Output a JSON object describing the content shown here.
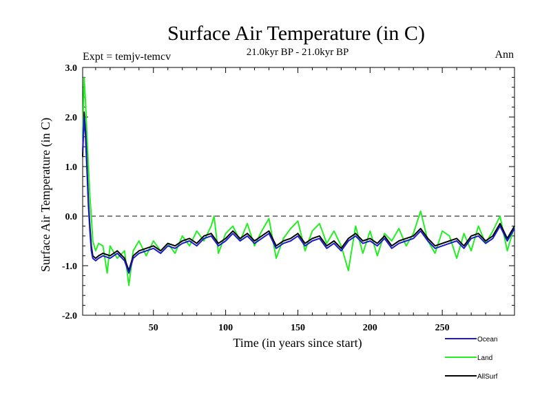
{
  "chart_data": {
    "type": "line",
    "title": "Surface Air Temperature (in C)",
    "subtitle": "21.0kyr BP - 21.0kyr BP",
    "left_annotation": "Expt = temjv-temcv",
    "right_annotation": "Ann",
    "xlabel": "Time (in years since start)",
    "ylabel": "Surface Air Temperature (in C)",
    "xlim": [
      1,
      300
    ],
    "ylim": [
      -2.0,
      3.0
    ],
    "x_ticks": [
      50,
      100,
      150,
      200,
      250
    ],
    "y_ticks": [
      -2.0,
      -1.0,
      0.0,
      1.0,
      2.0,
      3.0
    ],
    "y_tick_labels": [
      "-2.0",
      "-1.0",
      "0.0",
      "1.0",
      "2.0",
      "3.0"
    ],
    "reference_line": 0.0,
    "legend_position": "bottom-right",
    "series": [
      {
        "name": "AllSurf",
        "color": "#000000",
        "x": [
          1,
          2,
          3,
          4,
          5,
          6,
          7,
          8,
          10,
          12,
          15,
          20,
          25,
          30,
          33,
          36,
          40,
          45,
          50,
          55,
          60,
          65,
          70,
          75,
          80,
          85,
          90,
          95,
          100,
          105,
          110,
          115,
          120,
          125,
          130,
          135,
          140,
          145,
          150,
          155,
          160,
          165,
          170,
          175,
          180,
          185,
          190,
          195,
          200,
          205,
          210,
          215,
          220,
          225,
          230,
          235,
          240,
          245,
          250,
          255,
          260,
          265,
          270,
          275,
          280,
          285,
          290,
          295,
          300
        ],
        "values": [
          1.2,
          2.1,
          1.7,
          1.0,
          0.3,
          -0.2,
          -0.6,
          -0.8,
          -0.85,
          -0.8,
          -0.75,
          -0.8,
          -0.7,
          -0.85,
          -1.1,
          -0.8,
          -0.7,
          -0.65,
          -0.6,
          -0.7,
          -0.55,
          -0.6,
          -0.5,
          -0.45,
          -0.55,
          -0.4,
          -0.35,
          -0.55,
          -0.45,
          -0.3,
          -0.45,
          -0.35,
          -0.5,
          -0.4,
          -0.3,
          -0.6,
          -0.5,
          -0.45,
          -0.35,
          -0.55,
          -0.45,
          -0.4,
          -0.6,
          -0.5,
          -0.65,
          -0.45,
          -0.35,
          -0.5,
          -0.45,
          -0.55,
          -0.4,
          -0.6,
          -0.5,
          -0.45,
          -0.4,
          -0.25,
          -0.45,
          -0.6,
          -0.55,
          -0.5,
          -0.45,
          -0.6,
          -0.4,
          -0.35,
          -0.5,
          -0.4,
          -0.15,
          -0.45,
          -0.2
        ]
      },
      {
        "name": "Land",
        "color": "#22ee22",
        "x": [
          1,
          2,
          3,
          4,
          5,
          6,
          7,
          8,
          10,
          12,
          15,
          18,
          20,
          25,
          30,
          33,
          36,
          40,
          45,
          50,
          55,
          60,
          65,
          70,
          75,
          80,
          85,
          90,
          92,
          95,
          100,
          105,
          110,
          115,
          120,
          125,
          130,
          135,
          140,
          145,
          150,
          155,
          160,
          165,
          170,
          175,
          180,
          185,
          190,
          195,
          200,
          205,
          210,
          215,
          220,
          225,
          230,
          235,
          240,
          245,
          250,
          255,
          260,
          265,
          270,
          275,
          280,
          285,
          290,
          295,
          300
        ],
        "values": [
          1.6,
          2.8,
          2.3,
          1.6,
          1.0,
          0.4,
          0.0,
          -0.5,
          -0.7,
          -0.55,
          -0.6,
          -1.15,
          -0.6,
          -0.85,
          -0.7,
          -1.4,
          -0.7,
          -0.5,
          -0.8,
          -0.5,
          -0.7,
          -0.55,
          -0.75,
          -0.4,
          -0.6,
          -0.3,
          -0.5,
          -0.2,
          0.0,
          -0.75,
          -0.35,
          -0.2,
          -0.5,
          -0.15,
          -0.6,
          -0.3,
          -0.05,
          -0.85,
          -0.45,
          -0.25,
          -0.1,
          -0.7,
          -0.3,
          -0.15,
          -0.55,
          -0.3,
          -0.6,
          -1.1,
          -0.2,
          -0.75,
          -0.3,
          -0.8,
          -0.35,
          -0.5,
          -0.25,
          -0.6,
          -0.35,
          0.1,
          -0.5,
          -0.75,
          -0.3,
          -0.4,
          -0.85,
          -0.35,
          -0.7,
          -0.2,
          -0.55,
          -0.3,
          0.0,
          -0.7,
          -0.2
        ]
      },
      {
        "name": "Ocean",
        "color": "#1a1acc",
        "x": [
          1,
          2,
          3,
          4,
          5,
          6,
          7,
          8,
          10,
          12,
          15,
          20,
          25,
          30,
          33,
          36,
          40,
          45,
          50,
          55,
          60,
          65,
          70,
          75,
          80,
          85,
          90,
          95,
          100,
          105,
          110,
          115,
          120,
          125,
          130,
          135,
          140,
          145,
          150,
          155,
          160,
          165,
          170,
          175,
          180,
          185,
          190,
          195,
          200,
          205,
          210,
          215,
          220,
          225,
          230,
          235,
          240,
          245,
          250,
          255,
          260,
          265,
          270,
          275,
          280,
          285,
          290,
          295,
          300
        ],
        "values": [
          1.3,
          2.0,
          1.6,
          0.9,
          0.2,
          -0.3,
          -0.7,
          -0.85,
          -0.9,
          -0.85,
          -0.8,
          -0.85,
          -0.75,
          -0.9,
          -1.15,
          -0.85,
          -0.75,
          -0.7,
          -0.65,
          -0.75,
          -0.6,
          -0.65,
          -0.55,
          -0.5,
          -0.6,
          -0.45,
          -0.4,
          -0.6,
          -0.5,
          -0.35,
          -0.5,
          -0.4,
          -0.55,
          -0.45,
          -0.35,
          -0.65,
          -0.55,
          -0.5,
          -0.4,
          -0.6,
          -0.5,
          -0.45,
          -0.65,
          -0.55,
          -0.7,
          -0.5,
          -0.4,
          -0.55,
          -0.5,
          -0.6,
          -0.45,
          -0.65,
          -0.55,
          -0.5,
          -0.45,
          -0.3,
          -0.5,
          -0.65,
          -0.6,
          -0.55,
          -0.5,
          -0.65,
          -0.45,
          -0.4,
          -0.55,
          -0.45,
          -0.2,
          -0.5,
          -0.25
        ]
      }
    ]
  }
}
